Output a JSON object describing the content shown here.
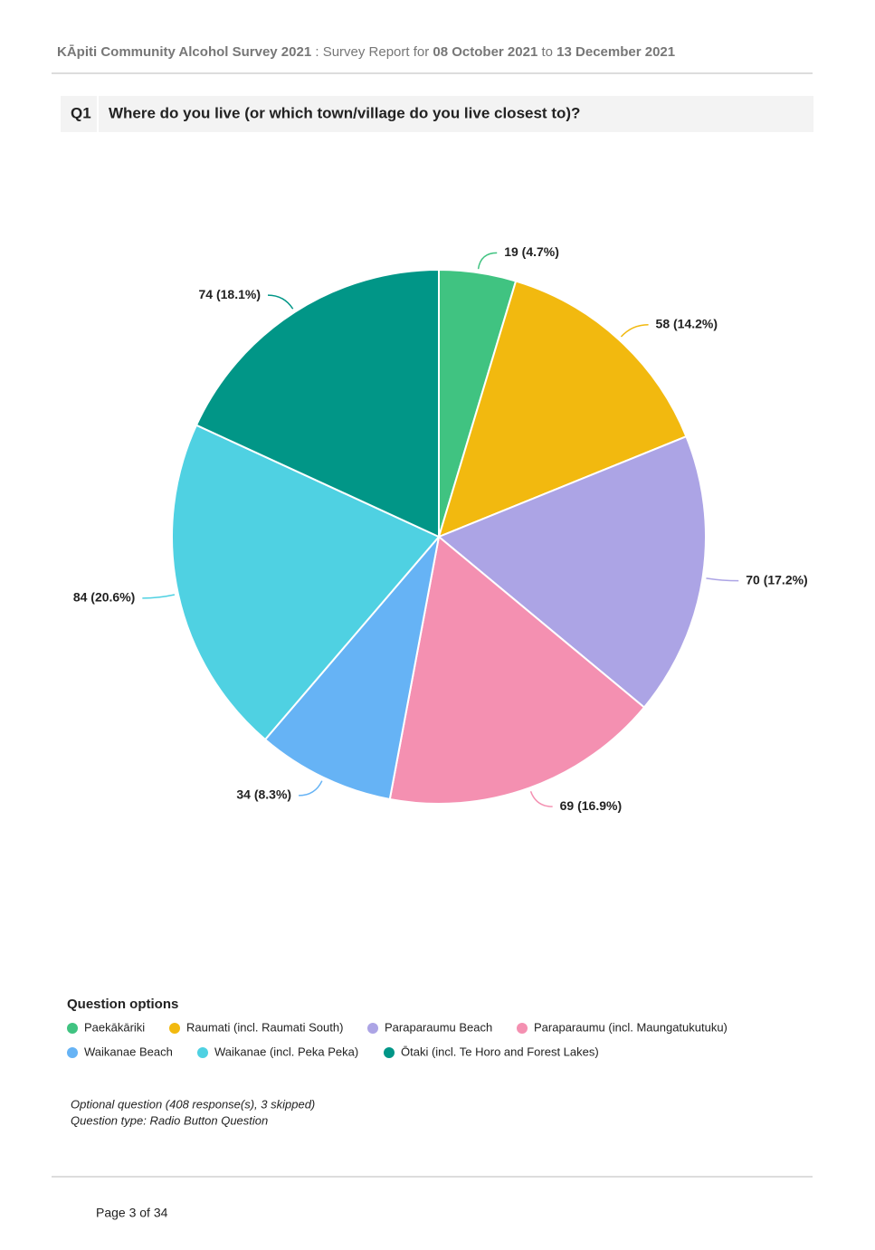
{
  "header": {
    "survey": "KĀpiti Community Alcohol Survey 2021",
    "separator": ":",
    "report": "Survey Report for",
    "start": "08 October 2021",
    "to": "to",
    "end": "13 December 2021"
  },
  "question": {
    "number": "Q1",
    "text": "Where do you live (or which town/village do you live closest to)?"
  },
  "chart_data": {
    "type": "pie",
    "categories": [
      "Paekākāriki",
      "Raumati (incl. Raumati South)",
      "Paraparaumu Beach",
      "Paraparaumu (incl. Maungatukutuku)",
      "Waikanae Beach",
      "Waikanae (incl. Peka Peka)",
      "Ōtaki (incl. Te Horo and Forest Lakes)"
    ],
    "values": [
      19,
      58,
      70,
      69,
      34,
      84,
      74
    ],
    "value_labels": [
      "19 (4.7%)",
      "58 (14.2%)",
      "70 (17.2%)",
      "69 (16.9%)",
      "34 (8.3%)",
      "84 (20.6%)",
      "74 (18.1%)"
    ],
    "colors": [
      "#40c381",
      "#f2b90f",
      "#aca4e5",
      "#f490b1",
      "#66b3f5",
      "#4fd1e2",
      "#019687"
    ],
    "legend_title": "Question options"
  },
  "notes": [
    "Optional question (408 response(s), 3 skipped)",
    "Question type: Radio Button Question"
  ],
  "footer": {
    "page": "Page 3 of 34"
  }
}
